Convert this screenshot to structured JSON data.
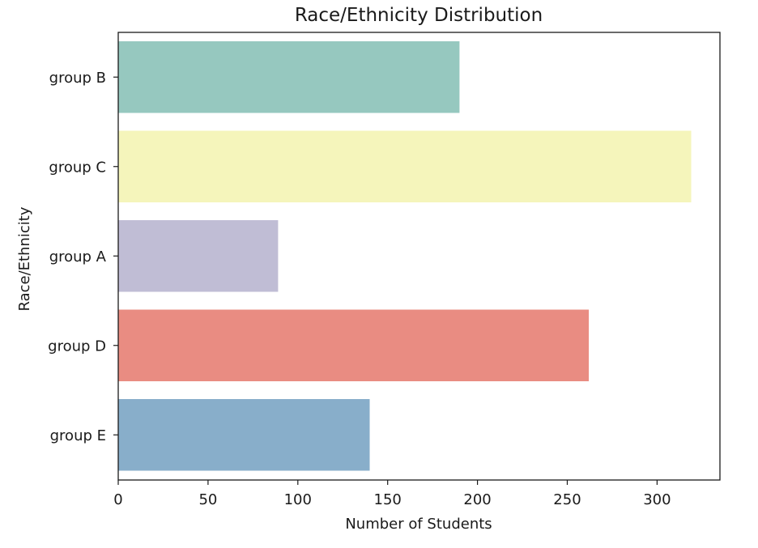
{
  "chart_data": {
    "type": "bar",
    "orientation": "horizontal",
    "title": "Race/Ethnicity Distribution",
    "xlabel": "Number of Students",
    "ylabel": "Race/Ethnicity",
    "categories": [
      "group B",
      "group C",
      "group A",
      "group D",
      "group E"
    ],
    "values": [
      190,
      319,
      89,
      262,
      140
    ],
    "colors": [
      "#96c8bf",
      "#f5f5bb",
      "#c0bdd5",
      "#e98c82",
      "#88aeca"
    ],
    "xlim": [
      0,
      335
    ],
    "xticks": [
      0,
      50,
      100,
      150,
      200,
      250,
      300
    ],
    "xtick_labels": [
      "0",
      "50",
      "100",
      "150",
      "200",
      "250",
      "300"
    ],
    "grid": false,
    "legend": "none"
  }
}
